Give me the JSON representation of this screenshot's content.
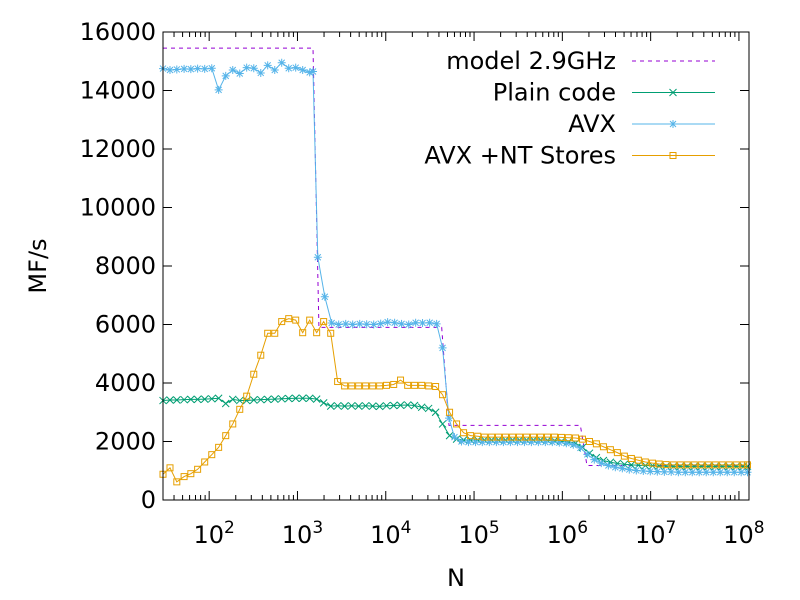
{
  "chart_data": {
    "type": "line",
    "xlabel": "N",
    "ylabel": "MF/s",
    "xscale": "log",
    "xlim": [
      30,
      130000000
    ],
    "ylim": [
      0,
      16000
    ],
    "yticks": [
      0,
      2000,
      4000,
      6000,
      8000,
      10000,
      12000,
      14000,
      16000
    ],
    "xticks": [
      {
        "value": 100,
        "base": "10",
        "exp": "2"
      },
      {
        "value": 1000,
        "base": "10",
        "exp": "3"
      },
      {
        "value": 10000,
        "base": "10",
        "exp": "4"
      },
      {
        "value": 100000,
        "base": "10",
        "exp": "5"
      },
      {
        "value": 1000000,
        "base": "10",
        "exp": "6"
      },
      {
        "value": 10000000,
        "base": "10",
        "exp": "7"
      },
      {
        "value": 100000000,
        "base": "10",
        "exp": "8"
      }
    ],
    "legend_position": "top-right",
    "series": [
      {
        "name": "model 2.9GHz",
        "color": "#9400d3",
        "style": "dashed",
        "marker": "none",
        "points": [
          [
            30,
            15450
          ],
          [
            1500,
            15450
          ],
          [
            1750,
            5900
          ],
          [
            43000,
            5900
          ],
          [
            52000,
            2550
          ],
          [
            1600000,
            2550
          ],
          [
            1900000,
            1180
          ],
          [
            130000000,
            1180
          ]
        ]
      },
      {
        "name": "Plain code",
        "color": "#009e73",
        "style": "solid",
        "marker": "x",
        "points": [
          [
            30,
            3400
          ],
          [
            36,
            3420
          ],
          [
            43,
            3420
          ],
          [
            52,
            3430
          ],
          [
            62,
            3440
          ],
          [
            74,
            3440
          ],
          [
            89,
            3450
          ],
          [
            107,
            3460
          ],
          [
            128,
            3480
          ],
          [
            154,
            3300
          ],
          [
            185,
            3440
          ],
          [
            222,
            3400
          ],
          [
            266,
            3400
          ],
          [
            320,
            3420
          ],
          [
            384,
            3430
          ],
          [
            460,
            3440
          ],
          [
            553,
            3450
          ],
          [
            663,
            3460
          ],
          [
            796,
            3470
          ],
          [
            955,
            3480
          ],
          [
            1146,
            3480
          ],
          [
            1375,
            3480
          ],
          [
            1650,
            3450
          ],
          [
            1980,
            3320
          ],
          [
            2380,
            3210
          ],
          [
            2850,
            3220
          ],
          [
            3420,
            3210
          ],
          [
            4110,
            3220
          ],
          [
            4930,
            3210
          ],
          [
            5910,
            3220
          ],
          [
            7100,
            3210
          ],
          [
            8520,
            3200
          ],
          [
            10200,
            3220
          ],
          [
            12300,
            3230
          ],
          [
            14700,
            3240
          ],
          [
            17700,
            3250
          ],
          [
            21200,
            3230
          ],
          [
            25500,
            3170
          ],
          [
            30600,
            3130
          ],
          [
            36700,
            3000
          ],
          [
            44000,
            2600
          ],
          [
            52800,
            2200
          ],
          [
            63400,
            2080
          ],
          [
            76100,
            2050
          ],
          [
            91300,
            2050
          ],
          [
            110000,
            2050
          ],
          [
            131000,
            2050
          ],
          [
            158000,
            2050
          ],
          [
            189000,
            2050
          ],
          [
            227000,
            2050
          ],
          [
            273000,
            2050
          ],
          [
            327000,
            2050
          ],
          [
            393000,
            2050
          ],
          [
            471000,
            2050
          ],
          [
            566000,
            2050
          ],
          [
            679000,
            2040
          ],
          [
            815000,
            2030
          ],
          [
            978000,
            2010
          ],
          [
            1170000,
            1990
          ],
          [
            1410000,
            1940
          ],
          [
            1690000,
            1800
          ],
          [
            2030000,
            1600
          ],
          [
            2430000,
            1450
          ],
          [
            2920000,
            1350
          ],
          [
            3500000,
            1290
          ],
          [
            4200000,
            1250
          ],
          [
            5040000,
            1220
          ],
          [
            6050000,
            1200
          ],
          [
            7260000,
            1190
          ],
          [
            8710000,
            1180
          ],
          [
            10500000,
            1170
          ],
          [
            12500000,
            1160
          ],
          [
            15000000,
            1160
          ],
          [
            18100000,
            1150
          ],
          [
            21700000,
            1150
          ],
          [
            26000000,
            1150
          ],
          [
            31200000,
            1150
          ],
          [
            37500000,
            1150
          ],
          [
            45000000,
            1150
          ],
          [
            54000000,
            1150
          ],
          [
            64800000,
            1150
          ],
          [
            77700000,
            1150
          ],
          [
            93300000,
            1150
          ],
          [
            112000000,
            1150
          ],
          [
            125000000,
            1150
          ]
        ]
      },
      {
        "name": "AVX",
        "color": "#56b4e9",
        "style": "solid",
        "marker": "star",
        "points": [
          [
            30,
            14750
          ],
          [
            36,
            14700
          ],
          [
            43,
            14720
          ],
          [
            52,
            14740
          ],
          [
            62,
            14730
          ],
          [
            74,
            14750
          ],
          [
            89,
            14740
          ],
          [
            107,
            14760
          ],
          [
            128,
            14020
          ],
          [
            154,
            14500
          ],
          [
            185,
            14700
          ],
          [
            222,
            14580
          ],
          [
            266,
            14780
          ],
          [
            320,
            14760
          ],
          [
            384,
            14600
          ],
          [
            460,
            14860
          ],
          [
            553,
            14700
          ],
          [
            663,
            14950
          ],
          [
            796,
            14760
          ],
          [
            955,
            14780
          ],
          [
            1146,
            14700
          ],
          [
            1375,
            14620
          ],
          [
            1500,
            14650
          ],
          [
            1700,
            8300
          ],
          [
            2040,
            6950
          ],
          [
            2440,
            6050
          ],
          [
            2930,
            6000
          ],
          [
            3520,
            6020
          ],
          [
            4220,
            6000
          ],
          [
            5070,
            6020
          ],
          [
            6080,
            6010
          ],
          [
            7300,
            6000
          ],
          [
            8760,
            6030
          ],
          [
            10500,
            6080
          ],
          [
            12600,
            6060
          ],
          [
            15100,
            6020
          ],
          [
            18200,
            6000
          ],
          [
            21800,
            6060
          ],
          [
            26100,
            6050
          ],
          [
            31400,
            6060
          ],
          [
            37700,
            6020
          ],
          [
            44000,
            5200
          ],
          [
            52000,
            2800
          ],
          [
            60000,
            2150
          ],
          [
            72000,
            2000
          ],
          [
            86400,
            1980
          ],
          [
            104000,
            1980
          ],
          [
            124000,
            1980
          ],
          [
            149000,
            1980
          ],
          [
            179000,
            1980
          ],
          [
            215000,
            1980
          ],
          [
            258000,
            1980
          ],
          [
            310000,
            1980
          ],
          [
            372000,
            1980
          ],
          [
            446000,
            1980
          ],
          [
            535000,
            1980
          ],
          [
            642000,
            1980
          ],
          [
            770000,
            1980
          ],
          [
            924000,
            1960
          ],
          [
            1110000,
            1940
          ],
          [
            1330000,
            1890
          ],
          [
            1600000,
            1780
          ],
          [
            1920000,
            1560
          ],
          [
            2300000,
            1380
          ],
          [
            2760000,
            1260
          ],
          [
            3320000,
            1180
          ],
          [
            3980000,
            1120
          ],
          [
            4780000,
            1080
          ],
          [
            5730000,
            1040
          ],
          [
            6880000,
            1010
          ],
          [
            8260000,
            990
          ],
          [
            9910000,
            980
          ],
          [
            11900000,
            970
          ],
          [
            14300000,
            960
          ],
          [
            17100000,
            960
          ],
          [
            20600000,
            950
          ],
          [
            24700000,
            950
          ],
          [
            29600000,
            950
          ],
          [
            35500000,
            950
          ],
          [
            42600000,
            950
          ],
          [
            51200000,
            950
          ],
          [
            61400000,
            950
          ],
          [
            73700000,
            950
          ],
          [
            88500000,
            950
          ],
          [
            106000000,
            950
          ],
          [
            125000000,
            950
          ]
        ]
      },
      {
        "name": "AVX +NT Stores",
        "color": "#e69f00",
        "style": "solid",
        "marker": "square",
        "points": [
          [
            30,
            880
          ],
          [
            36,
            1100
          ],
          [
            43,
            620
          ],
          [
            52,
            800
          ],
          [
            62,
            900
          ],
          [
            74,
            1050
          ],
          [
            89,
            1300
          ],
          [
            107,
            1550
          ],
          [
            128,
            1800
          ],
          [
            154,
            2200
          ],
          [
            185,
            2600
          ],
          [
            222,
            3100
          ],
          [
            266,
            3550
          ],
          [
            320,
            4300
          ],
          [
            384,
            4950
          ],
          [
            460,
            5700
          ],
          [
            553,
            5700
          ],
          [
            663,
            6100
          ],
          [
            796,
            6200
          ],
          [
            955,
            6150
          ],
          [
            1146,
            5720
          ],
          [
            1375,
            6150
          ],
          [
            1650,
            5720
          ],
          [
            1980,
            6100
          ],
          [
            2380,
            5700
          ],
          [
            2850,
            4050
          ],
          [
            3420,
            3900
          ],
          [
            4110,
            3900
          ],
          [
            4930,
            3900
          ],
          [
            5910,
            3900
          ],
          [
            7100,
            3900
          ],
          [
            8520,
            3900
          ],
          [
            10200,
            3920
          ],
          [
            12300,
            3950
          ],
          [
            14700,
            4100
          ],
          [
            17700,
            3920
          ],
          [
            21200,
            3920
          ],
          [
            25500,
            3920
          ],
          [
            30600,
            3900
          ],
          [
            36700,
            3880
          ],
          [
            44000,
            3600
          ],
          [
            52800,
            3000
          ],
          [
            63400,
            2600
          ],
          [
            76100,
            2300
          ],
          [
            91300,
            2200
          ],
          [
            110000,
            2180
          ],
          [
            131000,
            2150
          ],
          [
            158000,
            2150
          ],
          [
            189000,
            2150
          ],
          [
            227000,
            2150
          ],
          [
            273000,
            2150
          ],
          [
            327000,
            2150
          ],
          [
            393000,
            2150
          ],
          [
            471000,
            2150
          ],
          [
            566000,
            2150
          ],
          [
            679000,
            2150
          ],
          [
            815000,
            2150
          ],
          [
            978000,
            2140
          ],
          [
            1170000,
            2130
          ],
          [
            1410000,
            2120
          ],
          [
            1690000,
            2080
          ],
          [
            2030000,
            2000
          ],
          [
            2430000,
            1920
          ],
          [
            2920000,
            1820
          ],
          [
            3500000,
            1720
          ],
          [
            4200000,
            1620
          ],
          [
            5040000,
            1500
          ],
          [
            6050000,
            1420
          ],
          [
            7260000,
            1360
          ],
          [
            8710000,
            1300
          ],
          [
            10500000,
            1260
          ],
          [
            12500000,
            1230
          ],
          [
            15000000,
            1210
          ],
          [
            18100000,
            1200
          ],
          [
            21700000,
            1200
          ],
          [
            26000000,
            1200
          ],
          [
            31200000,
            1200
          ],
          [
            37500000,
            1200
          ],
          [
            45000000,
            1200
          ],
          [
            54000000,
            1200
          ],
          [
            64800000,
            1200
          ],
          [
            77700000,
            1200
          ],
          [
            93300000,
            1200
          ],
          [
            112000000,
            1200
          ],
          [
            125000000,
            1200
          ]
        ]
      }
    ]
  }
}
